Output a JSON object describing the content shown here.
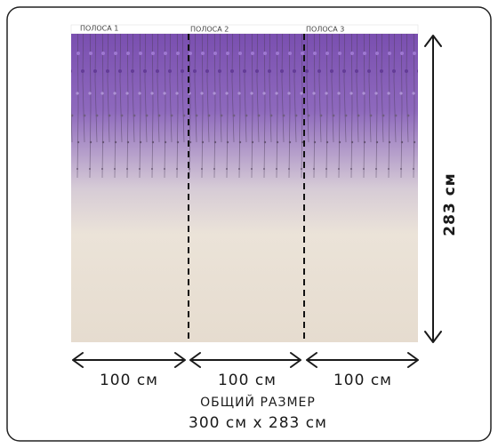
{
  "strips": [
    "ПОЛОСА 1",
    "ПОЛОСА 2",
    "ПОЛОСА 3"
  ],
  "strip_widths": [
    "100 см",
    "100 см",
    "100 см"
  ],
  "height_label": "283 см",
  "total": {
    "title": "ОБЩИЙ РАЗМЕР",
    "size": "300 см x 283 см"
  }
}
